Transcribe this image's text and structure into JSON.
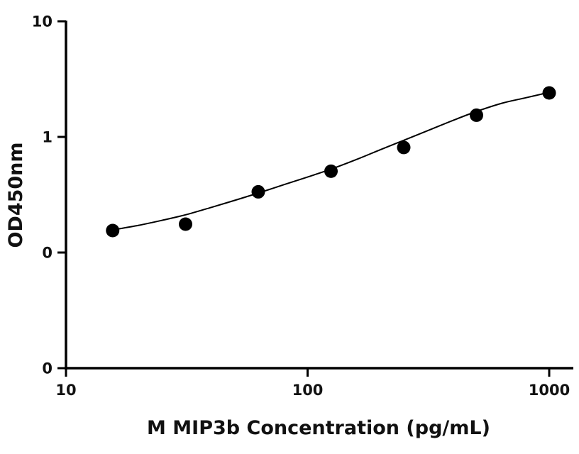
{
  "chart_data": {
    "type": "scatter",
    "xlabel": "M MIP3b Concentration (pg/mL)",
    "ylabel": "OD450nm",
    "x_scale": "log",
    "y_scale": "log",
    "xlim": [
      10,
      1000
    ],
    "ylim": [
      0.01,
      10
    ],
    "x_ticks": [
      10,
      100,
      1000
    ],
    "x_tick_labels": [
      "10",
      "100",
      "1000"
    ],
    "y_ticks": [
      0.01,
      0.1,
      1,
      10
    ],
    "y_tick_labels": [
      "0",
      "0",
      "1",
      "10"
    ],
    "grid": false,
    "legend": "none",
    "series": [
      {
        "x": [
          15.6,
          31.25,
          62.5,
          125,
          250,
          500,
          1000
        ],
        "y": [
          0.155,
          0.176,
          0.335,
          0.505,
          0.81,
          1.54,
          2.4
        ]
      }
    ],
    "fit_curve": {
      "x": [
        15.6,
        20,
        25,
        31.25,
        40,
        50,
        62.5,
        80,
        100,
        125,
        160,
        200,
        250,
        320,
        400,
        500,
        640,
        800,
        1000
      ],
      "y": [
        0.157,
        0.172,
        0.19,
        0.212,
        0.246,
        0.283,
        0.327,
        0.387,
        0.45,
        0.526,
        0.64,
        0.775,
        0.935,
        1.15,
        1.39,
        1.66,
        1.96,
        2.18,
        2.43
      ]
    },
    "colors": {
      "axes": "#000000",
      "points": "#000000",
      "curve": "#000000"
    }
  }
}
